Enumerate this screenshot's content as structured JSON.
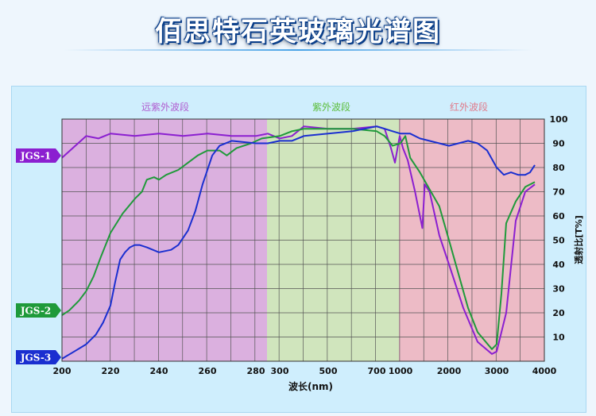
{
  "title": "佰思特石英玻璃光谱图",
  "chart_data": {
    "type": "line",
    "xlabel": "波长(nm)",
    "ylabel": "透射比[T%]",
    "ylim": [
      0,
      100
    ],
    "y_ticks": [
      "10",
      "20",
      "30",
      "40",
      "50",
      "60",
      "70",
      "80",
      "90",
      "100"
    ],
    "x_ticks": [
      "200",
      "220",
      "240",
      "260",
      "280",
      "300",
      "500",
      "700",
      "1000",
      "2000",
      "3000",
      "4000"
    ],
    "regions": [
      {
        "label": "远紫外波段",
        "color": "#dba8dc",
        "text_color": "#b05cd0"
      },
      {
        "label": "紫外波段",
        "color": "#cfe3b6",
        "text_color": "#5bbd3a"
      },
      {
        "label": "红外波段",
        "color": "#f0b5c0",
        "text_color": "#e07a8a"
      }
    ],
    "grid": true,
    "series": [
      {
        "name": "JGS-1",
        "color": "#8b1fd0",
        "points": [
          [
            200,
            84
          ],
          [
            210,
            93
          ],
          [
            215,
            92
          ],
          [
            220,
            94
          ],
          [
            230,
            93
          ],
          [
            240,
            94
          ],
          [
            250,
            93
          ],
          [
            260,
            94
          ],
          [
            270,
            93
          ],
          [
            280,
            93
          ],
          [
            290,
            94
          ],
          [
            300,
            92
          ],
          [
            350,
            93
          ],
          [
            400,
            97
          ],
          [
            500,
            96
          ],
          [
            600,
            96
          ],
          [
            700,
            97
          ],
          [
            800,
            96
          ],
          [
            880,
            88
          ],
          [
            930,
            82
          ],
          [
            990,
            93
          ],
          [
            1050,
            88
          ],
          [
            1150,
            83
          ],
          [
            1300,
            70
          ],
          [
            1450,
            55
          ],
          [
            1500,
            73
          ],
          [
            1600,
            70
          ],
          [
            1800,
            52
          ],
          [
            2000,
            40
          ],
          [
            2300,
            22
          ],
          [
            2600,
            8
          ],
          [
            2900,
            3
          ],
          [
            3000,
            4
          ],
          [
            3200,
            20
          ],
          [
            3400,
            58
          ],
          [
            3600,
            70
          ],
          [
            3800,
            73
          ]
        ]
      },
      {
        "name": "JGS-2",
        "color": "#1f9a3a",
        "points": [
          [
            200,
            19
          ],
          [
            203,
            21
          ],
          [
            207,
            25
          ],
          [
            210,
            29
          ],
          [
            213,
            35
          ],
          [
            216,
            43
          ],
          [
            220,
            53
          ],
          [
            225,
            61
          ],
          [
            230,
            67
          ],
          [
            233,
            70
          ],
          [
            235,
            75
          ],
          [
            238,
            76
          ],
          [
            240,
            75
          ],
          [
            243,
            77
          ],
          [
            248,
            79
          ],
          [
            252,
            82
          ],
          [
            256,
            85
          ],
          [
            260,
            87
          ],
          [
            265,
            87
          ],
          [
            268,
            85
          ],
          [
            272,
            88
          ],
          [
            278,
            90
          ],
          [
            285,
            92
          ],
          [
            300,
            93
          ],
          [
            350,
            95
          ],
          [
            400,
            96
          ],
          [
            500,
            96
          ],
          [
            600,
            96
          ],
          [
            700,
            95
          ],
          [
            800,
            93
          ],
          [
            900,
            89
          ],
          [
            1000,
            90
          ],
          [
            1100,
            93
          ],
          [
            1200,
            84
          ],
          [
            1400,
            78
          ],
          [
            1600,
            71
          ],
          [
            1800,
            64
          ],
          [
            2000,
            50
          ],
          [
            2200,
            36
          ],
          [
            2400,
            22
          ],
          [
            2600,
            12
          ],
          [
            2900,
            5
          ],
          [
            3000,
            7
          ],
          [
            3100,
            28
          ],
          [
            3200,
            57
          ],
          [
            3400,
            66
          ],
          [
            3600,
            72
          ],
          [
            3800,
            74
          ]
        ]
      },
      {
        "name": "JGS-3",
        "color": "#1a2fd0",
        "points": [
          [
            200,
            1
          ],
          [
            205,
            4
          ],
          [
            210,
            7
          ],
          [
            214,
            11
          ],
          [
            217,
            16
          ],
          [
            220,
            23
          ],
          [
            222,
            33
          ],
          [
            224,
            42
          ],
          [
            226,
            45
          ],
          [
            228,
            47
          ],
          [
            230,
            48
          ],
          [
            232,
            48
          ],
          [
            235,
            47
          ],
          [
            240,
            45
          ],
          [
            245,
            46
          ],
          [
            248,
            48
          ],
          [
            252,
            54
          ],
          [
            255,
            62
          ],
          [
            258,
            73
          ],
          [
            262,
            85
          ],
          [
            265,
            89
          ],
          [
            270,
            91
          ],
          [
            280,
            90
          ],
          [
            290,
            90
          ],
          [
            300,
            91
          ],
          [
            350,
            91
          ],
          [
            400,
            93
          ],
          [
            500,
            94
          ],
          [
            600,
            95
          ],
          [
            700,
            97
          ],
          [
            800,
            96
          ],
          [
            900,
            95
          ],
          [
            1000,
            94
          ],
          [
            1200,
            94
          ],
          [
            1400,
            92
          ],
          [
            1800,
            90
          ],
          [
            2000,
            89
          ],
          [
            2200,
            90
          ],
          [
            2400,
            91
          ],
          [
            2600,
            90
          ],
          [
            2800,
            87
          ],
          [
            3000,
            80
          ],
          [
            3150,
            77
          ],
          [
            3300,
            78
          ],
          [
            3450,
            77
          ],
          [
            3600,
            77
          ],
          [
            3700,
            78
          ],
          [
            3800,
            81
          ]
        ]
      }
    ]
  }
}
